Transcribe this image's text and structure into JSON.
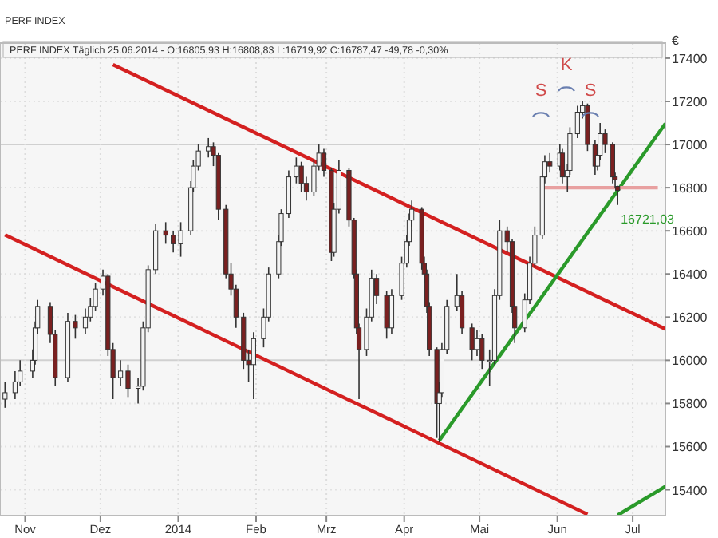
{
  "chart_data": {
    "type": "candlestick",
    "title": "PERF INDEX",
    "subtitle": "PERF INDEX Täglich  25.06.2014 - O:16805,93 H:16808,83 L:16719,92 C:16787,47 -49,78 -0,30%",
    "ylabel": "€",
    "x": [
      "2013-10-24",
      "2013-10-28",
      "2013-10-30",
      "2013-11-04",
      "2013-11-05",
      "2013-11-06",
      "2013-11-11",
      "2013-11-13",
      "2013-11-18",
      "2013-11-21",
      "2013-11-25",
      "2013-11-27",
      "2013-11-29",
      "2013-12-02",
      "2013-12-04",
      "2013-12-06",
      "2013-12-09",
      "2013-12-12",
      "2013-12-16",
      "2013-12-18",
      "2013-12-20",
      "2013-12-23",
      "2013-12-27",
      "2013-12-30",
      "2014-01-02",
      "2014-01-06",
      "2014-01-07",
      "2014-01-09",
      "2014-01-13",
      "2014-01-15",
      "2014-01-17",
      "2014-01-20",
      "2014-01-22",
      "2014-01-24",
      "2014-01-27",
      "2014-01-29",
      "2014-01-31",
      "2014-02-04",
      "2014-02-06",
      "2014-02-10",
      "2014-02-11",
      "2014-02-14",
      "2014-02-17",
      "2014-02-19",
      "2014-02-21",
      "2014-02-24",
      "2014-02-26",
      "2014-02-28",
      "2014-03-03",
      "2014-03-04",
      "2014-03-06",
      "2014-03-10",
      "2014-03-12",
      "2014-03-13",
      "2014-03-14",
      "2014-03-17",
      "2014-03-19",
      "2014-03-21",
      "2014-03-25",
      "2014-03-27",
      "2014-03-31",
      "2014-04-02",
      "2014-04-03",
      "2014-04-04",
      "2014-04-08",
      "2014-04-09",
      "2014-04-10",
      "2014-04-11",
      "2014-04-14",
      "2014-04-15",
      "2014-04-16",
      "2014-04-18",
      "2014-04-22",
      "2014-04-24",
      "2014-04-28",
      "2014-04-30",
      "2014-05-02",
      "2014-05-05",
      "2014-05-07",
      "2014-05-09",
      "2014-05-12",
      "2014-05-14",
      "2014-05-15",
      "2014-05-19",
      "2014-05-21",
      "2014-05-23",
      "2014-05-26",
      "2014-05-27",
      "2014-05-29",
      "2014-06-02",
      "2014-06-03",
      "2014-06-05",
      "2014-06-06",
      "2014-06-09",
      "2014-06-11",
      "2014-06-13",
      "2014-06-16",
      "2014-06-17",
      "2014-06-18",
      "2014-06-20",
      "2014-06-23",
      "2014-06-24",
      "2014-06-25"
    ],
    "ohlc": [
      [
        15820,
        15900,
        15780,
        15850
      ],
      [
        15850,
        15950,
        15820,
        15900
      ],
      [
        15900,
        16000,
        15880,
        15950
      ],
      [
        15950,
        16050,
        15920,
        16000
      ],
      [
        16000,
        16180,
        15980,
        16150
      ],
      [
        16150,
        16280,
        16120,
        16250
      ],
      [
        16250,
        16270,
        16080,
        16120
      ],
      [
        16120,
        16140,
        15880,
        15920
      ],
      [
        15920,
        16220,
        15900,
        16180
      ],
      [
        16180,
        16210,
        16100,
        16150
      ],
      [
        16150,
        16240,
        16120,
        16200
      ],
      [
        16200,
        16290,
        16180,
        16250
      ],
      [
        16250,
        16360,
        16230,
        16330
      ],
      [
        16330,
        16420,
        16300,
        16390
      ],
      [
        16390,
        16400,
        16020,
        16050
      ],
      [
        16050,
        16080,
        15820,
        15920
      ],
      [
        15920,
        16000,
        15880,
        15950
      ],
      [
        15950,
        15980,
        15830,
        15870
      ],
      [
        15870,
        15920,
        15800,
        15880
      ],
      [
        15880,
        16180,
        15860,
        16150
      ],
      [
        16150,
        16440,
        16130,
        16420
      ],
      [
        16420,
        16630,
        16400,
        16600
      ],
      [
        16600,
        16640,
        16540,
        16580
      ],
      [
        16580,
        16600,
        16500,
        16540
      ],
      [
        16540,
        16640,
        16480,
        16600
      ],
      [
        16600,
        16830,
        16580,
        16800
      ],
      [
        16800,
        16930,
        16780,
        16900
      ],
      [
        16900,
        17000,
        16880,
        16970
      ],
      [
        16970,
        17030,
        16940,
        16990
      ],
      [
        16990,
        17010,
        16900,
        16950
      ],
      [
        16950,
        16960,
        16650,
        16700
      ],
      [
        16700,
        16720,
        16380,
        16400
      ],
      [
        16400,
        16450,
        16300,
        16330
      ],
      [
        16330,
        16350,
        16150,
        16200
      ],
      [
        16200,
        16220,
        15960,
        16000
      ],
      [
        16000,
        16050,
        15900,
        15980
      ],
      [
        15980,
        16130,
        15820,
        16100
      ],
      [
        16100,
        16240,
        16060,
        16200
      ],
      [
        16200,
        16430,
        16180,
        16400
      ],
      [
        16400,
        16580,
        16380,
        16550
      ],
      [
        16550,
        16700,
        16530,
        16680
      ],
      [
        16680,
        16880,
        16660,
        16850
      ],
      [
        16850,
        16940,
        16820,
        16900
      ],
      [
        16900,
        16920,
        16780,
        16820
      ],
      [
        16820,
        16850,
        16740,
        16780
      ],
      [
        16780,
        16930,
        16760,
        16900
      ],
      [
        16900,
        17000,
        16880,
        16960
      ],
      [
        16960,
        16980,
        16850,
        16880
      ],
      [
        16880,
        16890,
        16460,
        16500
      ],
      [
        16500,
        16730,
        16480,
        16700
      ],
      [
        16700,
        16930,
        16680,
        16880
      ],
      [
        16880,
        16890,
        16620,
        16650
      ],
      [
        16650,
        16660,
        16380,
        16400
      ],
      [
        16400,
        16420,
        16120,
        16150
      ],
      [
        16150,
        16170,
        15820,
        16050
      ],
      [
        16050,
        16240,
        16020,
        16200
      ],
      [
        16200,
        16420,
        16180,
        16380
      ],
      [
        16380,
        16400,
        16260,
        16300
      ],
      [
        16300,
        16320,
        16100,
        16150
      ],
      [
        16150,
        16330,
        16120,
        16300
      ],
      [
        16300,
        16480,
        16280,
        16450
      ],
      [
        16450,
        16580,
        16430,
        16550
      ],
      [
        16550,
        16680,
        16530,
        16650
      ],
      [
        16650,
        16740,
        16620,
        16700
      ],
      [
        16700,
        16710,
        16420,
        16450
      ],
      [
        16450,
        16480,
        16360,
        16400
      ],
      [
        16400,
        16420,
        16220,
        16250
      ],
      [
        16250,
        16270,
        16020,
        16050
      ],
      [
        16050,
        16060,
        15640,
        15800
      ],
      [
        15800,
        15900,
        15620,
        15850
      ],
      [
        15850,
        16080,
        15830,
        16050
      ],
      [
        16050,
        16280,
        16030,
        16250
      ],
      [
        16250,
        16400,
        16230,
        16300
      ],
      [
        16300,
        16320,
        16120,
        16150
      ],
      [
        16150,
        16170,
        16000,
        16050
      ],
      [
        16050,
        16140,
        16020,
        16100
      ],
      [
        16100,
        16120,
        15960,
        16000
      ],
      [
        16000,
        16050,
        15880,
        16000
      ],
      [
        16000,
        16330,
        15980,
        16300
      ],
      [
        16300,
        16650,
        16280,
        16600
      ],
      [
        16600,
        16620,
        16500,
        16550
      ],
      [
        16550,
        16560,
        16220,
        16250
      ],
      [
        16250,
        16270,
        16080,
        16150
      ],
      [
        16150,
        16310,
        16130,
        16280
      ],
      [
        16280,
        16480,
        16260,
        16450
      ],
      [
        16450,
        16620,
        16430,
        16580
      ],
      [
        16580,
        16880,
        16560,
        16850
      ],
      [
        16850,
        16950,
        16820,
        16920
      ],
      [
        16920,
        16960,
        16870,
        16900
      ],
      [
        16900,
        17000,
        16880,
        16960
      ],
      [
        16960,
        16980,
        16820,
        16850
      ],
      [
        16850,
        16910,
        16780,
        16880
      ],
      [
        16880,
        17080,
        16860,
        17050
      ],
      [
        17050,
        17180,
        17030,
        17150
      ],
      [
        17150,
        17200,
        17120,
        17180
      ],
      [
        17180,
        17190,
        16970,
        17000
      ],
      [
        17000,
        17020,
        16860,
        16900
      ],
      [
        16900,
        16980,
        16880,
        16950
      ],
      [
        16950,
        17100,
        16930,
        17050
      ],
      [
        17050,
        17070,
        16960,
        17000
      ],
      [
        17000,
        17010,
        16820,
        16850
      ],
      [
        16850,
        16870,
        16800,
        16837
      ],
      [
        16805.93,
        16808.83,
        16719.92,
        16787.47
      ]
    ],
    "series": [
      {
        "type": "line",
        "color": "#d42020",
        "x": [
          "2013-12-06",
          "2014-07-14"
        ],
        "values": [
          17370,
          16145
        ]
      },
      {
        "type": "line",
        "color": "#d42020",
        "x": [
          "2013-10-24",
          "2014-06-13"
        ],
        "values": [
          16581,
          15286
        ]
      },
      {
        "type": "line",
        "color": "#2a9a2a",
        "x": [
          "2014-04-15",
          "2014-07-14"
        ],
        "values": [
          15629,
          17097
        ]
      },
      {
        "type": "line",
        "color": "#2a9a2a",
        "x": [
          "2014-06-25",
          "2014-07-14"
        ],
        "values": [
          15282,
          15415
        ]
      },
      {
        "type": "line",
        "color": "#e8a0a0",
        "x": [
          "2014-05-26",
          "2014-07-11"
        ],
        "values": [
          16800,
          16800
        ]
      }
    ],
    "annotations": [
      "S",
      "K",
      "S",
      {
        "text": "16721,03",
        "x": "2014-06-25",
        "y": 16721.03
      }
    ],
    "xlim": [
      "2013-10-22",
      "2014-07-14"
    ],
    "ylim": [
      15280,
      17470
    ],
    "xticks": [
      {
        "value": "2013-11-01",
        "label": "Nov"
      },
      {
        "value": "2013-12-01",
        "label": "Dez"
      },
      {
        "value": "2014-01-01",
        "label": "2014"
      },
      {
        "value": "2014-02-01",
        "label": "Feb"
      },
      {
        "value": "2014-03-01",
        "label": "Mrz"
      },
      {
        "value": "2014-04-01",
        "label": "Apr"
      },
      {
        "value": "2014-05-01",
        "label": "Mai"
      },
      {
        "value": "2014-06-01",
        "label": "Jun"
      },
      {
        "value": "2014-07-01",
        "label": "Jul"
      }
    ],
    "yticks": [
      15400,
      15600,
      15800,
      16000,
      16200,
      16400,
      16600,
      16800,
      17000,
      17200,
      17400
    ],
    "grid": true
  }
}
